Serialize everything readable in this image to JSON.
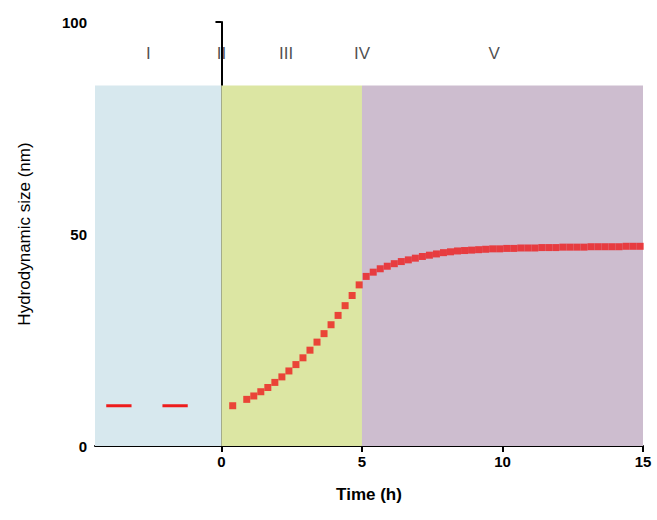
{
  "chart_data": {
    "type": "line",
    "x_label": "Time (h)",
    "y_label": "Hydrodynamic size (nm)",
    "xlim": [
      -4.5,
      15
    ],
    "xticks": [
      0,
      5,
      10,
      15
    ],
    "ylim": [
      0,
      100
    ],
    "yticks": [
      0,
      50,
      100
    ],
    "grid": false,
    "bands": [
      {
        "x0": -4.5,
        "x1": 0,
        "y1": 85,
        "color": "#d7e8ee"
      },
      {
        "x0": 0,
        "x1": 5,
        "y1": 85,
        "color": "#dce6a3"
      },
      {
        "x0": 5,
        "x1": 15,
        "y1": 85,
        "color": "#cdbdcf"
      }
    ],
    "annotations": [
      {
        "text": "I",
        "x": -2.6
      },
      {
        "text": "II",
        "x": 0
      },
      {
        "text": "III",
        "x": 2.3
      },
      {
        "text": "IV",
        "x": 5
      },
      {
        "text": "V",
        "x": 9.7
      }
    ],
    "series": [
      {
        "type": "line",
        "color": "#ee1c1c",
        "marker": "none",
        "line_style": "solid",
        "x": [
          -4.1,
          -3.2,
          -2.65,
          -2.1,
          -1.2
        ],
        "values": [
          9.5,
          9.5,
          null,
          9.5,
          9.5
        ]
      },
      {
        "type": "scatter",
        "color": "#ee1c1c",
        "marker": "square",
        "x": [
          0.4,
          0.9,
          1.15,
          1.4,
          1.65,
          1.9,
          2.15,
          2.4,
          2.65,
          2.9,
          3.15,
          3.4,
          3.65,
          3.9,
          4.15,
          4.4,
          4.65,
          4.9,
          5.15,
          5.4,
          5.65,
          5.9,
          6.15,
          6.4,
          6.65,
          6.9,
          7.15,
          7.4,
          7.65,
          7.9,
          8.15,
          8.4,
          8.65,
          8.9,
          9.15,
          9.4,
          9.65,
          9.9,
          10.15,
          10.4,
          10.65,
          10.9,
          11.15,
          11.4,
          11.65,
          11.9,
          12.15,
          12.4,
          12.65,
          12.9,
          13.15,
          13.4,
          13.65,
          13.9,
          14.15,
          14.4,
          14.65,
          14.9
        ],
        "values": [
          9.5,
          11,
          11.8,
          12.8,
          13.8,
          15,
          16.3,
          17.7,
          19.2,
          20.8,
          22.6,
          24.5,
          26.5,
          28.6,
          30.8,
          33.1,
          35.5,
          38,
          40,
          41,
          41.8,
          42.4,
          43,
          43.5,
          43.9,
          44.3,
          44.7,
          45,
          45.3,
          45.6,
          45.8,
          46,
          46.1,
          46.2,
          46.3,
          46.4,
          46.5,
          46.5,
          46.6,
          46.6,
          46.7,
          46.7,
          46.7,
          46.8,
          46.8,
          46.8,
          46.9,
          46.9,
          46.9,
          46.9,
          47,
          47,
          47,
          47,
          47,
          47.1,
          47.1,
          47.1
        ]
      }
    ]
  }
}
